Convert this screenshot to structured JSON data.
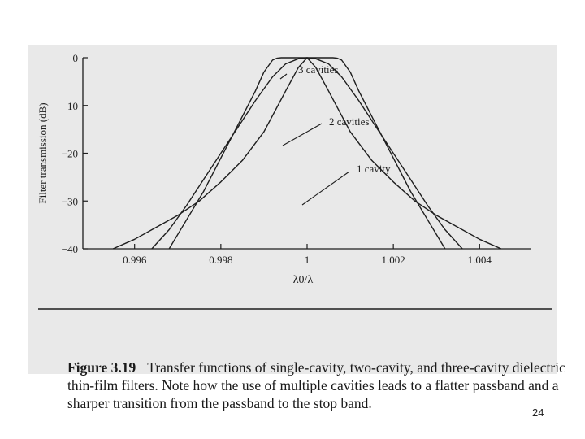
{
  "chart_data": {
    "type": "line",
    "xlabel": "λ0/λ",
    "ylabel": "Filter transmission (dB)",
    "xlim": [
      0.9948,
      1.0052
    ],
    "ylim": [
      -40,
      0
    ],
    "x_ticks": [
      0.996,
      0.998,
      1,
      1.002,
      1.004
    ],
    "x_tick_labels": [
      "0.996",
      "0.998",
      "1",
      "1.002",
      "1.004"
    ],
    "y_ticks": [
      0,
      -10,
      -20,
      -30,
      -40
    ],
    "y_tick_labels": [
      "0",
      "−10",
      "−20",
      "−30",
      "−40"
    ],
    "grid": false,
    "series": [
      {
        "name": "3 cavities",
        "x": [
          0.9968,
          0.9972,
          0.9976,
          0.998,
          0.9984,
          0.9988,
          0.999,
          0.9992,
          0.9993,
          0.9994,
          0.9996,
          0.9998,
          1,
          1.0002,
          1.0004,
          1.0006,
          1.0007,
          1.0008,
          1.001,
          1.0012,
          1.0016,
          1.002,
          1.0024,
          1.0028,
          1.0032
        ],
        "y": [
          -40,
          -34,
          -28,
          -21,
          -14,
          -7,
          -3,
          -0.5,
          -0.1,
          0,
          0,
          0,
          0,
          0,
          0,
          0,
          -0.1,
          -0.5,
          -3,
          -7,
          -14,
          -21,
          -28,
          -34,
          -40
        ]
      },
      {
        "name": "2 cavities",
        "x": [
          0.9964,
          0.9968,
          0.9972,
          0.9976,
          0.998,
          0.9984,
          0.9988,
          0.9992,
          0.9995,
          0.9998,
          1,
          1.0002,
          1.0005,
          1.0008,
          1.0012,
          1.0016,
          1.002,
          1.0024,
          1.0028,
          1.0032,
          1.0036
        ],
        "y": [
          -40,
          -36,
          -31,
          -25.5,
          -20,
          -14.5,
          -9,
          -4,
          -1.3,
          -0.2,
          0,
          -0.2,
          -1.3,
          -4,
          -9,
          -14.5,
          -20,
          -25.5,
          -31,
          -36,
          -40
        ]
      },
      {
        "name": "1 cavity",
        "x": [
          0.9955,
          0.996,
          0.9965,
          0.997,
          0.9975,
          0.998,
          0.9985,
          0.999,
          0.9995,
          0.9998,
          1,
          1.0002,
          1.0005,
          1.001,
          1.0015,
          1.002,
          1.0025,
          1.003,
          1.0035,
          1.004,
          1.0045
        ],
        "y": [
          -40,
          -38,
          -35.5,
          -33,
          -30,
          -26,
          -21.5,
          -15.5,
          -7,
          -2,
          0,
          -2,
          -7,
          -15.5,
          -21.5,
          -26,
          -30,
          -33,
          -35.5,
          -38,
          -40
        ]
      }
    ]
  },
  "caption": {
    "figure_label": "Figure 3.19",
    "text": "Transfer functions of single-cavity, two-cavity, and three-cavity dielectric thin-film filters. Note how the use of multiple cavities leads to a flatter passband and a sharper transition from the passband to the stop band."
  },
  "page_number": "24"
}
